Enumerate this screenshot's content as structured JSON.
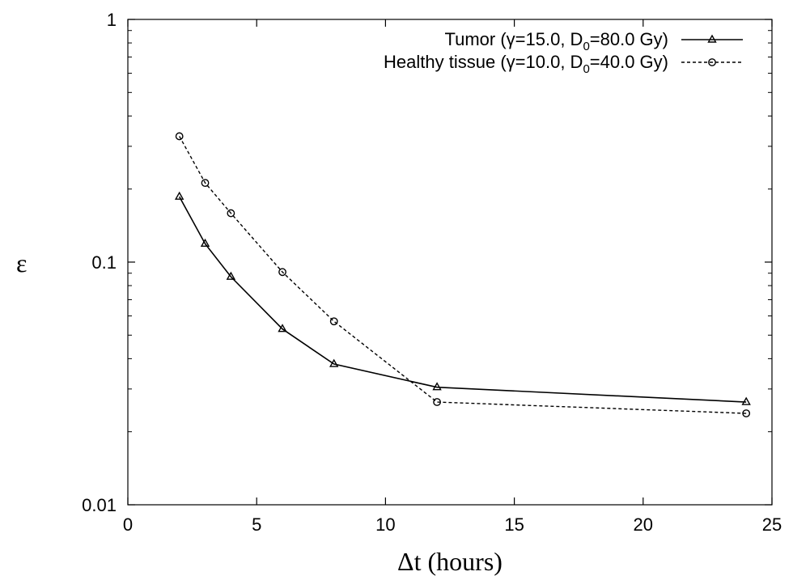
{
  "chart_data": {
    "type": "line",
    "title": "",
    "xlabel": "Δt (hours)",
    "ylabel": "ε",
    "xlim": [
      0,
      25
    ],
    "ylim": [
      0.01,
      1
    ],
    "yscale": "log",
    "grid": false,
    "legend_position": "top-right",
    "x_ticks": [
      0,
      5,
      10,
      15,
      20,
      25
    ],
    "y_ticks": [
      0.01,
      0.1,
      1
    ],
    "x_tick_labels": [
      "0",
      "5",
      "10",
      "15",
      "20",
      "25"
    ],
    "y_tick_labels": [
      "0.01",
      "0.1",
      "1"
    ],
    "series": [
      {
        "name_parts": {
          "prefix": "Tumor (",
          "gamma": "γ",
          "mid": "=15.0, D",
          "sub": "0",
          "suffix": "=80.0 Gy)"
        },
        "line_style": "solid",
        "marker": "triangle",
        "color": "#000000",
        "x": [
          2,
          3,
          4,
          6,
          8,
          12,
          24
        ],
        "y": [
          0.186,
          0.119,
          0.087,
          0.053,
          0.038,
          0.0305,
          0.0265
        ]
      },
      {
        "name_parts": {
          "prefix": "Healthy tissue (",
          "gamma": "γ",
          "mid": "=10.0, D",
          "sub": "0",
          "suffix": "=40.0 Gy)"
        },
        "line_style": "dashed",
        "marker": "circle",
        "color": "#000000",
        "x": [
          2,
          3,
          4,
          6,
          8,
          12,
          24
        ],
        "y": [
          0.33,
          0.212,
          0.159,
          0.091,
          0.057,
          0.0265,
          0.0238
        ]
      }
    ]
  }
}
